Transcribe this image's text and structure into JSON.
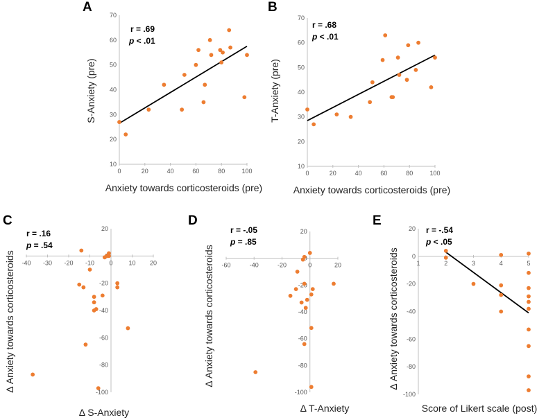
{
  "figure": {
    "title": ""
  },
  "colors": {
    "points": "#ED7D31",
    "regression": "#000000",
    "axis": "#BFBFBF"
  },
  "chart_data": [
    {
      "id": "A",
      "type": "scatter",
      "panel_label": "A",
      "xlabel": "Anxiety towards corticosteroids (pre)",
      "ylabel": "S-Anxiety (pre)",
      "xlim": [
        0,
        100
      ],
      "ylim": [
        10,
        70
      ],
      "xticks": [
        0,
        20,
        40,
        60,
        80,
        100
      ],
      "yticks": [
        10,
        20,
        30,
        40,
        50,
        60,
        70
      ],
      "stat_r": "r = .69",
      "stat_p_symbol": "p",
      "stat_p_value": " < .01",
      "regression": {
        "x": [
          0,
          100
        ],
        "y": [
          26.5,
          57.5
        ]
      },
      "x": [
        0,
        5,
        23,
        35,
        49,
        51,
        60,
        62,
        66,
        67,
        71,
        72,
        79,
        80,
        81,
        86,
        87,
        98,
        100
      ],
      "y": [
        27,
        22,
        32,
        42,
        32,
        46,
        50,
        56,
        35,
        42,
        60,
        54,
        56,
        51,
        55,
        64,
        57,
        37,
        54
      ]
    },
    {
      "id": "B",
      "type": "scatter",
      "panel_label": "B",
      "xlabel": "Anxiety towards corticosteroids (pre)",
      "ylabel": "T-Anxiety (pre)",
      "xlim": [
        0,
        100
      ],
      "ylim": [
        10,
        70
      ],
      "xticks": [
        0,
        20,
        40,
        60,
        80,
        100
      ],
      "yticks": [
        10,
        20,
        30,
        40,
        50,
        60,
        70
      ],
      "stat_r": "r = .68",
      "stat_p_symbol": "p",
      "stat_p_value": " < .01",
      "regression": {
        "x": [
          0,
          100
        ],
        "y": [
          28.5,
          55
        ]
      },
      "x": [
        0,
        5,
        23,
        34,
        49,
        51,
        59,
        61,
        66,
        67,
        71,
        72,
        78,
        79,
        85,
        87,
        97,
        100
      ],
      "y": [
        33,
        27,
        31,
        30,
        36,
        44,
        53,
        63,
        38,
        38,
        54,
        47,
        45,
        59,
        49,
        60,
        42,
        54
      ]
    },
    {
      "id": "C",
      "type": "scatter",
      "panel_label": "C",
      "xlabel": "Δ S-Anxiety",
      "ylabel": "Δ Anxiety  towards  corticosteroids",
      "xlim": [
        -40,
        20
      ],
      "ylim": [
        -100,
        20
      ],
      "xticks": [
        -40,
        -30,
        -20,
        -10,
        0,
        10,
        20
      ],
      "yticks": [
        20,
        0,
        -20,
        -40,
        -60,
        -80,
        -100
      ],
      "stat_r": "r = .16",
      "stat_p_symbol": "p",
      "stat_p_value": " = .54",
      "regression": null,
      "x": [
        -37,
        -14,
        -15,
        -13,
        -12,
        -10,
        -8,
        -8,
        -7,
        -8,
        -4,
        -6,
        -3,
        -1,
        -1,
        3,
        3,
        8,
        -2
      ],
      "y": [
        -87,
        4,
        -21,
        -23,
        -65,
        -10,
        -30,
        -34,
        -39,
        -40,
        -29,
        -97,
        -1,
        2,
        0,
        -20,
        -23,
        -53,
        0
      ]
    },
    {
      "id": "D",
      "type": "scatter",
      "panel_label": "D",
      "xlabel": "Δ T-Anxiety",
      "ylabel": "Δ Anxiety  towards  corticosteroids",
      "xlim": [
        -60,
        20
      ],
      "ylim": [
        -100,
        20
      ],
      "xticks": [
        -60,
        -40,
        -20,
        0,
        20
      ],
      "yticks": [
        20,
        0,
        -20,
        -40,
        -60,
        -80,
        -100
      ],
      "stat_r": "r = -.05",
      "stat_p_symbol": "p",
      "stat_p_value": " = .85",
      "regression": null,
      "x": [
        -39,
        -14,
        -10,
        -9,
        -5,
        -4,
        -4,
        -2,
        -3,
        0,
        1,
        1,
        1,
        2,
        -4,
        -6,
        17
      ],
      "y": [
        -85,
        -28,
        -23,
        -10,
        -1,
        1,
        -19,
        -31,
        -37,
        4,
        -27,
        -52,
        -96,
        -23,
        -64,
        -33,
        -19
      ]
    },
    {
      "id": "E",
      "type": "scatter",
      "panel_label": "E",
      "xlabel": "Score of Likert scale (post)",
      "ylabel": "Δ Anxiety  towards  corticosteroids",
      "xlim": [
        1,
        5
      ],
      "ylim": [
        -100,
        20
      ],
      "xticks": [
        1,
        2,
        3,
        4,
        5
      ],
      "yticks": [
        20,
        0,
        -20,
        -40,
        -60,
        -80,
        -100
      ],
      "stat_r": "r = -.54",
      "stat_p_symbol": "p",
      "stat_p_value": " < .05",
      "regression": {
        "x": [
          2,
          5
        ],
        "y": [
          3,
          -41
        ]
      },
      "x": [
        2,
        2,
        3,
        4,
        4,
        4,
        4,
        5,
        5,
        5,
        5,
        5,
        5,
        5,
        5,
        5,
        5
      ],
      "y": [
        4,
        -1,
        -20,
        1,
        -21,
        -28,
        -40,
        2,
        -12,
        -23,
        -29,
        -33,
        -38,
        -53,
        -65,
        -87,
        -97
      ]
    }
  ]
}
